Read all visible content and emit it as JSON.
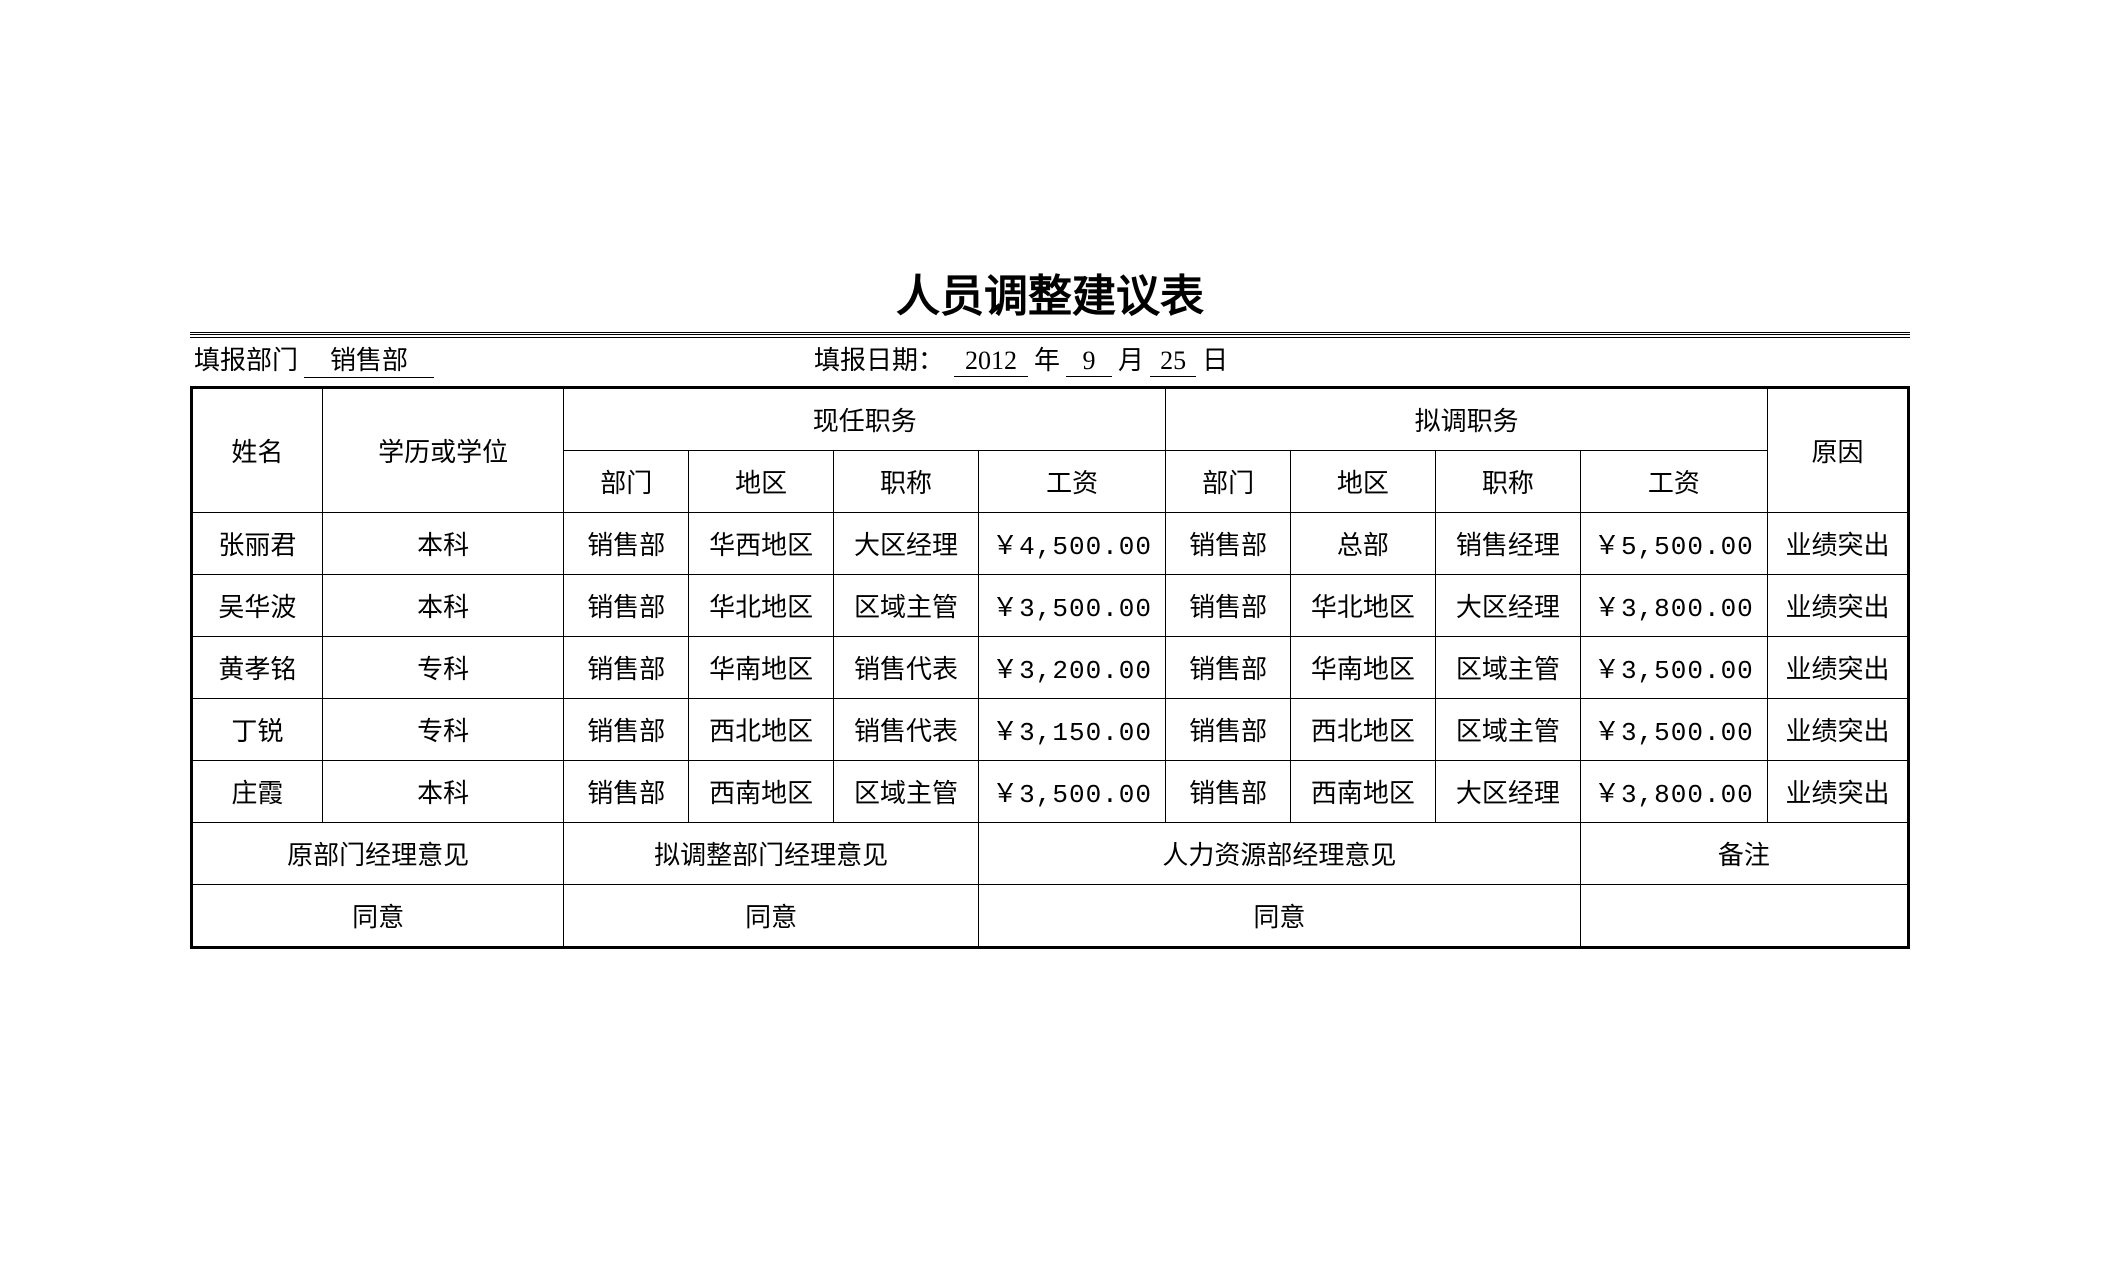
{
  "title": "人员调整建议表",
  "meta": {
    "dept_label": "填报部门",
    "dept_value": "销售部",
    "date_label": "填报日期：",
    "year": "2012",
    "year_unit": "年",
    "month": "9",
    "month_unit": "月",
    "day": "25",
    "day_unit": "日"
  },
  "headers": {
    "name": "姓名",
    "education": "学历或学位",
    "current": "现任职务",
    "proposed": "拟调职务",
    "reason": "原因",
    "dept": "部门",
    "region": "地区",
    "job_title": "职称",
    "salary": "工资"
  },
  "rows": [
    {
      "name": "张丽君",
      "education": "本科",
      "cur_dept": "销售部",
      "cur_region": "华西地区",
      "cur_title": "大区经理",
      "cur_salary": "￥4,500.00",
      "new_dept": "销售部",
      "new_region": "总部",
      "new_title": "销售经理",
      "new_salary": "￥5,500.00",
      "reason": "业绩突出"
    },
    {
      "name": "吴华波",
      "education": "本科",
      "cur_dept": "销售部",
      "cur_region": "华北地区",
      "cur_title": "区域主管",
      "cur_salary": "￥3,500.00",
      "new_dept": "销售部",
      "new_region": "华北地区",
      "new_title": "大区经理",
      "new_salary": "￥3,800.00",
      "reason": "业绩突出"
    },
    {
      "name": "黄孝铭",
      "education": "专科",
      "cur_dept": "销售部",
      "cur_region": "华南地区",
      "cur_title": "销售代表",
      "cur_salary": "￥3,200.00",
      "new_dept": "销售部",
      "new_region": "华南地区",
      "new_title": "区域主管",
      "new_salary": "￥3,500.00",
      "reason": "业绩突出"
    },
    {
      "name": "丁锐",
      "education": "专科",
      "cur_dept": "销售部",
      "cur_region": "西北地区",
      "cur_title": "销售代表",
      "cur_salary": "￥3,150.00",
      "new_dept": "销售部",
      "new_region": "西北地区",
      "new_title": "区域主管",
      "new_salary": "￥3,500.00",
      "reason": "业绩突出"
    },
    {
      "name": "庄霞",
      "education": "本科",
      "cur_dept": "销售部",
      "cur_region": "西南地区",
      "cur_title": "区域主管",
      "cur_salary": "￥3,500.00",
      "new_dept": "销售部",
      "new_region": "西南地区",
      "new_title": "大区经理",
      "new_salary": "￥3,800.00",
      "reason": "业绩突出"
    }
  ],
  "footer": {
    "orig_mgr_label": "原部门经理意见",
    "new_mgr_label": "拟调整部门经理意见",
    "hr_mgr_label": "人力资源部经理意见",
    "remark_label": "备注",
    "orig_mgr_value": "同意",
    "new_mgr_value": "同意",
    "hr_mgr_value": "同意",
    "remark_value": ""
  },
  "style": {
    "page_bg": "#ffffff",
    "text_color": "#000000",
    "border_color": "#000000",
    "title_fontsize": 44,
    "body_fontsize": 26,
    "outer_border_width": 3.5,
    "inner_border_width": 1.5
  }
}
